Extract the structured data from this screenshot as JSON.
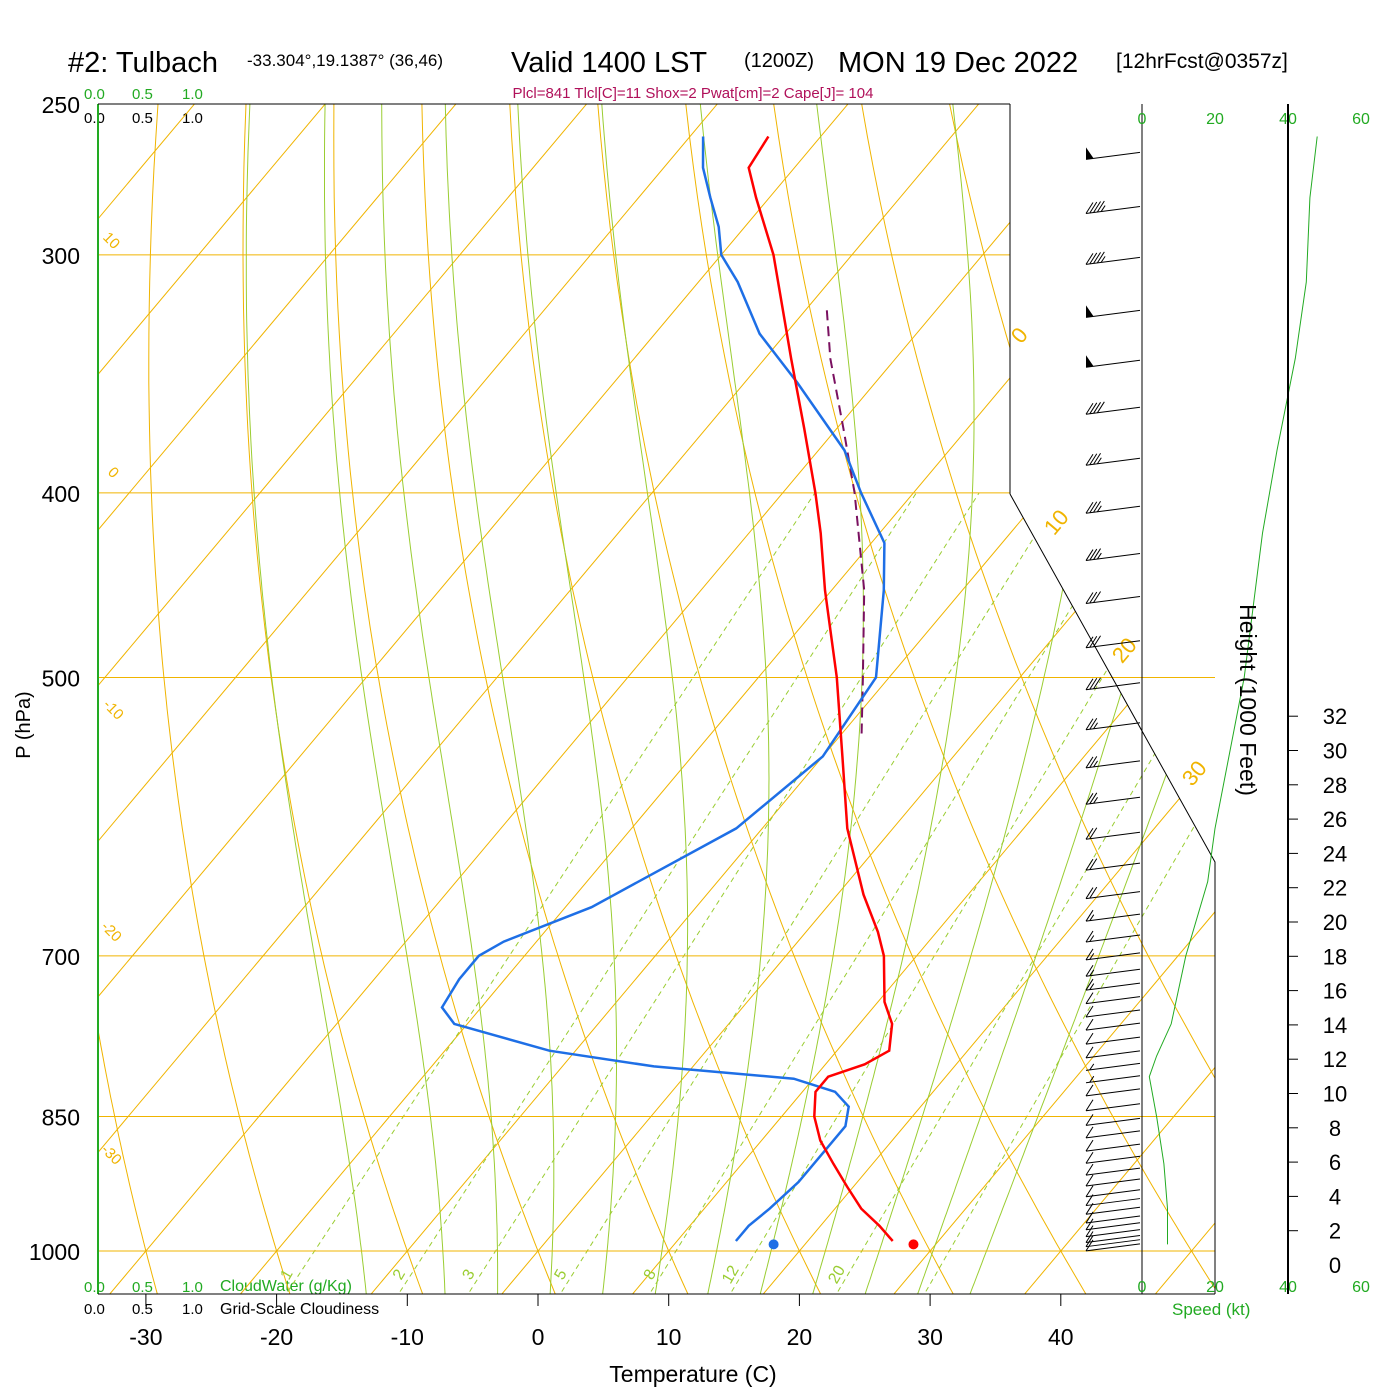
{
  "header": {
    "station": "#2: Tulbach",
    "coords": "-33.304°,19.1387° (36,46)",
    "valid": "Valid 1400 LST",
    "zulu": "(1200Z)",
    "date": "MON 19 Dec 2022",
    "forecast": "[12hrFcst@0357z]"
  },
  "parcel_info": "Plcl=841 Tlcl[C]=11 Shox=2 Pwat[cm]=2 Cape[J]= 104",
  "colors": {
    "temperature": "#ff0000",
    "dewpoint": "#1e6fe6",
    "parcel": "#7a1060",
    "isotherm": "#f0b400",
    "dry_adiabat": "#f0b400",
    "moist_adiabat": "#9acd32",
    "mixing_ratio": "#9acd32",
    "green_text": "#22aa22",
    "info_text": "#b0105a"
  },
  "cloud_scales": {
    "cloudwater": {
      "ticks": [
        "0.0",
        "0.5",
        "1.0"
      ],
      "label": "CloudWater (g/Kg)"
    },
    "cloudiness": {
      "ticks": [
        "0.0",
        "0.5",
        "1.0"
      ],
      "label": "Grid-Scale Cloudiness"
    }
  },
  "speed_axis": {
    "ticks": [
      "0",
      "20",
      "40",
      "60"
    ],
    "label": "Speed (kt)"
  },
  "height_axis": {
    "label": "Height (1000 Feet)",
    "ticks": [
      "0",
      "2",
      "4",
      "6",
      "8",
      "10",
      "12",
      "14",
      "16",
      "18",
      "20",
      "22",
      "24",
      "26",
      "28",
      "30",
      "32"
    ]
  },
  "chart_data": {
    "type": "skew-t",
    "xlabel": "Temperature (C)",
    "ylabel": "P (hPa)",
    "x_ticks": [
      -30,
      -20,
      -10,
      0,
      10,
      20,
      30,
      40
    ],
    "pressure_ticks": [
      250,
      300,
      400,
      500,
      700,
      850,
      1000
    ],
    "isotherm_labels": [
      "10",
      "0",
      "-10",
      "-20",
      "-30",
      "0",
      "10",
      "20",
      "30"
    ],
    "mixing_ratio_labels": [
      "1",
      "2",
      "3",
      "5",
      "8",
      "12",
      "20"
    ],
    "temperature": [
      {
        "p": 988,
        "t": 26.5
      },
      {
        "p": 970,
        "t": 24.5
      },
      {
        "p": 950,
        "t": 22.0
      },
      {
        "p": 925,
        "t": 19.5
      },
      {
        "p": 900,
        "t": 17.0
      },
      {
        "p": 875,
        "t": 14.5
      },
      {
        "p": 850,
        "t": 12.5
      },
      {
        "p": 825,
        "t": 11.0
      },
      {
        "p": 810,
        "t": 11.0
      },
      {
        "p": 798,
        "t": 13.0
      },
      {
        "p": 785,
        "t": 14.0
      },
      {
        "p": 760,
        "t": 12.5
      },
      {
        "p": 740,
        "t": 10.5
      },
      {
        "p": 700,
        "t": 7.5
      },
      {
        "p": 680,
        "t": 5.5
      },
      {
        "p": 650,
        "t": 2.0
      },
      {
        "p": 600,
        "t": -3.5
      },
      {
        "p": 550,
        "t": -8.5
      },
      {
        "p": 500,
        "t": -14.0
      },
      {
        "p": 450,
        "t": -20.5
      },
      {
        "p": 420,
        "t": -24.5
      },
      {
        "p": 400,
        "t": -27.5
      },
      {
        "p": 370,
        "t": -32.5
      },
      {
        "p": 340,
        "t": -38.0
      },
      {
        "p": 300,
        "t": -46.0
      },
      {
        "p": 280,
        "t": -51.0
      },
      {
        "p": 270,
        "t": -53.5
      },
      {
        "p": 260,
        "t": -54.0
      }
    ],
    "dewpoint": [
      {
        "p": 988,
        "t": 14.5
      },
      {
        "p": 970,
        "t": 14.5
      },
      {
        "p": 950,
        "t": 15.0
      },
      {
        "p": 920,
        "t": 15.5
      },
      {
        "p": 890,
        "t": 15.5
      },
      {
        "p": 860,
        "t": 15.5
      },
      {
        "p": 840,
        "t": 14.5
      },
      {
        "p": 825,
        "t": 12.5
      },
      {
        "p": 812,
        "t": 8.5
      },
      {
        "p": 800,
        "t": -3.0
      },
      {
        "p": 785,
        "t": -12.0
      },
      {
        "p": 760,
        "t": -21.0
      },
      {
        "p": 745,
        "t": -23.0
      },
      {
        "p": 720,
        "t": -23.5
      },
      {
        "p": 700,
        "t": -23.5
      },
      {
        "p": 688,
        "t": -22.5
      },
      {
        "p": 660,
        "t": -18.0
      },
      {
        "p": 600,
        "t": -12.0
      },
      {
        "p": 550,
        "t": -10.0
      },
      {
        "p": 500,
        "t": -11.0
      },
      {
        "p": 450,
        "t": -16.0
      },
      {
        "p": 425,
        "t": -19.0
      },
      {
        "p": 400,
        "t": -24.0
      },
      {
        "p": 380,
        "t": -28.0
      },
      {
        "p": 350,
        "t": -36.0
      },
      {
        "p": 330,
        "t": -42.0
      },
      {
        "p": 310,
        "t": -47.0
      },
      {
        "p": 300,
        "t": -50.0
      },
      {
        "p": 290,
        "t": -52.0
      },
      {
        "p": 280,
        "t": -54.5
      },
      {
        "p": 270,
        "t": -57.0
      },
      {
        "p": 260,
        "t": -59.0
      }
    ],
    "parcel": [
      {
        "p": 535,
        "t": -8.5
      },
      {
        "p": 500,
        "t": -12.0
      },
      {
        "p": 450,
        "t": -17.5
      },
      {
        "p": 400,
        "t": -24.5
      },
      {
        "p": 370,
        "t": -29.5
      },
      {
        "p": 340,
        "t": -35.0
      },
      {
        "p": 320,
        "t": -38.5
      }
    ],
    "surface_temperature": 28.3,
    "surface_dewpoint": 17.6,
    "surface_pressure": 992,
    "wind_speed": [
      {
        "p": 992,
        "s": 7
      },
      {
        "p": 950,
        "s": 7
      },
      {
        "p": 900,
        "s": 6
      },
      {
        "p": 850,
        "s": 4
      },
      {
        "p": 810,
        "s": 2
      },
      {
        "p": 790,
        "s": 4
      },
      {
        "p": 760,
        "s": 8
      },
      {
        "p": 700,
        "s": 12
      },
      {
        "p": 640,
        "s": 18
      },
      {
        "p": 600,
        "s": 20
      },
      {
        "p": 500,
        "s": 28
      },
      {
        "p": 420,
        "s": 33
      },
      {
        "p": 380,
        "s": 37
      },
      {
        "p": 340,
        "s": 42
      },
      {
        "p": 310,
        "s": 45
      },
      {
        "p": 280,
        "s": 46
      },
      {
        "p": 260,
        "s": 48
      }
    ],
    "wind_barbs": [
      {
        "p": 995,
        "s": 10
      },
      {
        "p": 990,
        "s": 10
      },
      {
        "p": 985,
        "s": 10
      },
      {
        "p": 978,
        "s": 10
      },
      {
        "p": 970,
        "s": 10
      },
      {
        "p": 962,
        "s": 10
      },
      {
        "p": 952,
        "s": 10
      },
      {
        "p": 942,
        "s": 10
      },
      {
        "p": 932,
        "s": 10
      },
      {
        "p": 920,
        "s": 10
      },
      {
        "p": 908,
        "s": 10
      },
      {
        "p": 895,
        "s": 10
      },
      {
        "p": 882,
        "s": 10
      },
      {
        "p": 868,
        "s": 10
      },
      {
        "p": 855,
        "s": 10
      },
      {
        "p": 840,
        "s": 10
      },
      {
        "p": 825,
        "s": 10
      },
      {
        "p": 812,
        "s": 5
      },
      {
        "p": 800,
        "s": 5
      },
      {
        "p": 788,
        "s": 10
      },
      {
        "p": 775,
        "s": 10
      },
      {
        "p": 762,
        "s": 10
      },
      {
        "p": 750,
        "s": 10
      },
      {
        "p": 738,
        "s": 10
      },
      {
        "p": 726,
        "s": 15
      },
      {
        "p": 714,
        "s": 15
      },
      {
        "p": 700,
        "s": 15
      },
      {
        "p": 685,
        "s": 15
      },
      {
        "p": 668,
        "s": 15
      },
      {
        "p": 650,
        "s": 20
      },
      {
        "p": 628,
        "s": 20
      },
      {
        "p": 605,
        "s": 20
      },
      {
        "p": 580,
        "s": 25
      },
      {
        "p": 555,
        "s": 25
      },
      {
        "p": 530,
        "s": 25
      },
      {
        "p": 505,
        "s": 30
      },
      {
        "p": 480,
        "s": 30
      },
      {
        "p": 455,
        "s": 30
      },
      {
        "p": 432,
        "s": 35
      },
      {
        "p": 408,
        "s": 35
      },
      {
        "p": 385,
        "s": 35
      },
      {
        "p": 362,
        "s": 40
      },
      {
        "p": 342,
        "s": 50
      },
      {
        "p": 322,
        "s": 50
      },
      {
        "p": 302,
        "s": 45
      },
      {
        "p": 284,
        "s": 45
      },
      {
        "p": 266,
        "s": 50
      }
    ]
  }
}
